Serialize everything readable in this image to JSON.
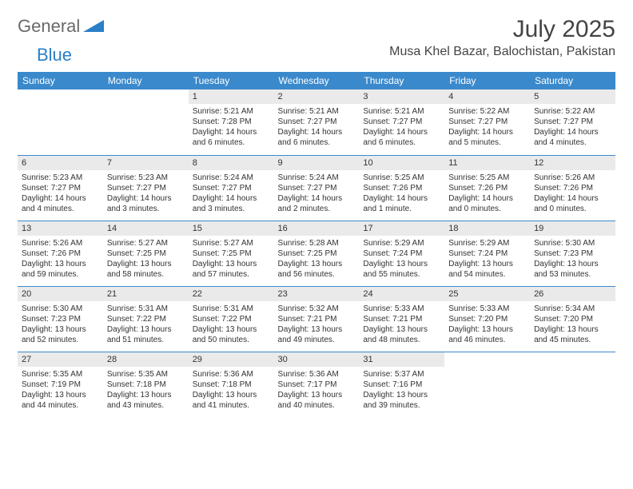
{
  "logo": {
    "general": "General",
    "blue": "Blue"
  },
  "title": "July 2025",
  "location": "Musa Khel Bazar, Balochistan, Pakistan",
  "dayHeaders": [
    "Sunday",
    "Monday",
    "Tuesday",
    "Wednesday",
    "Thursday",
    "Friday",
    "Saturday"
  ],
  "colors": {
    "headerBg": "#3a89cc",
    "headerText": "#ffffff",
    "dayBg": "#eaeaea",
    "borderColor": "#3a89cc",
    "logoGray": "#6a6a6a",
    "logoBlue": "#2a7fc7"
  },
  "weeks": [
    [
      null,
      null,
      {
        "n": "1",
        "sr": "Sunrise: 5:21 AM",
        "ss": "Sunset: 7:28 PM",
        "dl": "Daylight: 14 hours and 6 minutes."
      },
      {
        "n": "2",
        "sr": "Sunrise: 5:21 AM",
        "ss": "Sunset: 7:27 PM",
        "dl": "Daylight: 14 hours and 6 minutes."
      },
      {
        "n": "3",
        "sr": "Sunrise: 5:21 AM",
        "ss": "Sunset: 7:27 PM",
        "dl": "Daylight: 14 hours and 6 minutes."
      },
      {
        "n": "4",
        "sr": "Sunrise: 5:22 AM",
        "ss": "Sunset: 7:27 PM",
        "dl": "Daylight: 14 hours and 5 minutes."
      },
      {
        "n": "5",
        "sr": "Sunrise: 5:22 AM",
        "ss": "Sunset: 7:27 PM",
        "dl": "Daylight: 14 hours and 4 minutes."
      }
    ],
    [
      {
        "n": "6",
        "sr": "Sunrise: 5:23 AM",
        "ss": "Sunset: 7:27 PM",
        "dl": "Daylight: 14 hours and 4 minutes."
      },
      {
        "n": "7",
        "sr": "Sunrise: 5:23 AM",
        "ss": "Sunset: 7:27 PM",
        "dl": "Daylight: 14 hours and 3 minutes."
      },
      {
        "n": "8",
        "sr": "Sunrise: 5:24 AM",
        "ss": "Sunset: 7:27 PM",
        "dl": "Daylight: 14 hours and 3 minutes."
      },
      {
        "n": "9",
        "sr": "Sunrise: 5:24 AM",
        "ss": "Sunset: 7:27 PM",
        "dl": "Daylight: 14 hours and 2 minutes."
      },
      {
        "n": "10",
        "sr": "Sunrise: 5:25 AM",
        "ss": "Sunset: 7:26 PM",
        "dl": "Daylight: 14 hours and 1 minute."
      },
      {
        "n": "11",
        "sr": "Sunrise: 5:25 AM",
        "ss": "Sunset: 7:26 PM",
        "dl": "Daylight: 14 hours and 0 minutes."
      },
      {
        "n": "12",
        "sr": "Sunrise: 5:26 AM",
        "ss": "Sunset: 7:26 PM",
        "dl": "Daylight: 14 hours and 0 minutes."
      }
    ],
    [
      {
        "n": "13",
        "sr": "Sunrise: 5:26 AM",
        "ss": "Sunset: 7:26 PM",
        "dl": "Daylight: 13 hours and 59 minutes."
      },
      {
        "n": "14",
        "sr": "Sunrise: 5:27 AM",
        "ss": "Sunset: 7:25 PM",
        "dl": "Daylight: 13 hours and 58 minutes."
      },
      {
        "n": "15",
        "sr": "Sunrise: 5:27 AM",
        "ss": "Sunset: 7:25 PM",
        "dl": "Daylight: 13 hours and 57 minutes."
      },
      {
        "n": "16",
        "sr": "Sunrise: 5:28 AM",
        "ss": "Sunset: 7:25 PM",
        "dl": "Daylight: 13 hours and 56 minutes."
      },
      {
        "n": "17",
        "sr": "Sunrise: 5:29 AM",
        "ss": "Sunset: 7:24 PM",
        "dl": "Daylight: 13 hours and 55 minutes."
      },
      {
        "n": "18",
        "sr": "Sunrise: 5:29 AM",
        "ss": "Sunset: 7:24 PM",
        "dl": "Daylight: 13 hours and 54 minutes."
      },
      {
        "n": "19",
        "sr": "Sunrise: 5:30 AM",
        "ss": "Sunset: 7:23 PM",
        "dl": "Daylight: 13 hours and 53 minutes."
      }
    ],
    [
      {
        "n": "20",
        "sr": "Sunrise: 5:30 AM",
        "ss": "Sunset: 7:23 PM",
        "dl": "Daylight: 13 hours and 52 minutes."
      },
      {
        "n": "21",
        "sr": "Sunrise: 5:31 AM",
        "ss": "Sunset: 7:22 PM",
        "dl": "Daylight: 13 hours and 51 minutes."
      },
      {
        "n": "22",
        "sr": "Sunrise: 5:31 AM",
        "ss": "Sunset: 7:22 PM",
        "dl": "Daylight: 13 hours and 50 minutes."
      },
      {
        "n": "23",
        "sr": "Sunrise: 5:32 AM",
        "ss": "Sunset: 7:21 PM",
        "dl": "Daylight: 13 hours and 49 minutes."
      },
      {
        "n": "24",
        "sr": "Sunrise: 5:33 AM",
        "ss": "Sunset: 7:21 PM",
        "dl": "Daylight: 13 hours and 48 minutes."
      },
      {
        "n": "25",
        "sr": "Sunrise: 5:33 AM",
        "ss": "Sunset: 7:20 PM",
        "dl": "Daylight: 13 hours and 46 minutes."
      },
      {
        "n": "26",
        "sr": "Sunrise: 5:34 AM",
        "ss": "Sunset: 7:20 PM",
        "dl": "Daylight: 13 hours and 45 minutes."
      }
    ],
    [
      {
        "n": "27",
        "sr": "Sunrise: 5:35 AM",
        "ss": "Sunset: 7:19 PM",
        "dl": "Daylight: 13 hours and 44 minutes."
      },
      {
        "n": "28",
        "sr": "Sunrise: 5:35 AM",
        "ss": "Sunset: 7:18 PM",
        "dl": "Daylight: 13 hours and 43 minutes."
      },
      {
        "n": "29",
        "sr": "Sunrise: 5:36 AM",
        "ss": "Sunset: 7:18 PM",
        "dl": "Daylight: 13 hours and 41 minutes."
      },
      {
        "n": "30",
        "sr": "Sunrise: 5:36 AM",
        "ss": "Sunset: 7:17 PM",
        "dl": "Daylight: 13 hours and 40 minutes."
      },
      {
        "n": "31",
        "sr": "Sunrise: 5:37 AM",
        "ss": "Sunset: 7:16 PM",
        "dl": "Daylight: 13 hours and 39 minutes."
      },
      null,
      null
    ]
  ]
}
